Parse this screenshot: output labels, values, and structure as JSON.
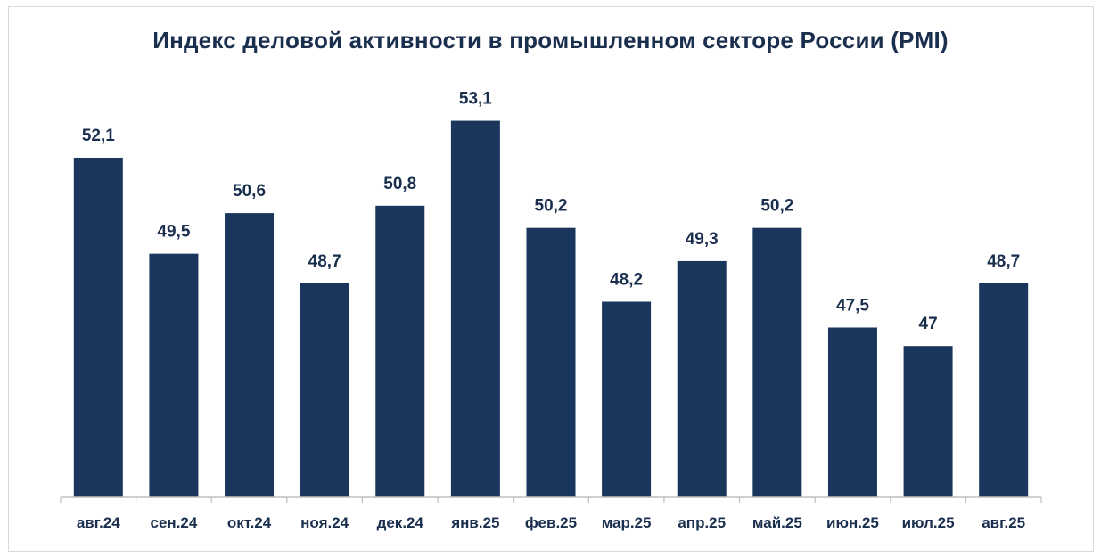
{
  "chart_data": {
    "type": "bar",
    "title": "Индекс деловой активности в промышленном секторе России (PMI)",
    "categories": [
      "авг.24",
      "сен.24",
      "окт.24",
      "ноя.24",
      "дек.24",
      "янв.25",
      "фев.25",
      "мар.25",
      "апр.25",
      "май.25",
      "июн.25",
      "июл.25",
      "авг.25"
    ],
    "values": [
      52.1,
      49.5,
      50.6,
      48.7,
      50.8,
      53.1,
      50.2,
      48.2,
      49.3,
      50.2,
      47.5,
      47,
      48.7
    ],
    "value_labels": [
      "52,1",
      "49,5",
      "50,6",
      "48,7",
      "50,8",
      "53,1",
      "50,2",
      "48,2",
      "49,3",
      "50,2",
      "47,5",
      "47",
      "48,7"
    ],
    "xlabel": "",
    "ylabel": "",
    "ylim": [
      42.9,
      54.2
    ],
    "grid": false,
    "legend": "none",
    "bar_color": "#1a365d",
    "axis_color": "#bfbfbf",
    "text_color": "#1a2f4e"
  }
}
